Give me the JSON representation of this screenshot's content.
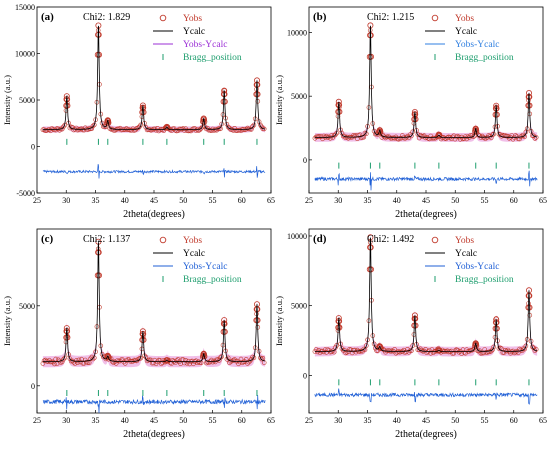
{
  "colors": {
    "yobs": "#c0392b",
    "ycalc": "#000000",
    "diff": "#1f5fd6",
    "bragg": "#1e9e6e",
    "diff_legend_b": "#2f7fe0",
    "diff_legend_c": "#1f5fd6",
    "diff_legend_d": "#1f5fd6",
    "diff_legend_a": "#9b2fd6",
    "fill": "#e58bd6"
  },
  "chart_data": [
    {
      "type": "scatter",
      "panel_label": "(a)",
      "chi_label": "Chi2: 1.829",
      "xlabel": "2theta(degrees)",
      "ylabel": "Intensity (a.u.)",
      "xlim": [
        25,
        65
      ],
      "ylim": [
        -5000,
        15000
      ],
      "xticks": [
        "25",
        "30",
        "35",
        "40",
        "45",
        "50",
        "55",
        "60",
        "65"
      ],
      "yticks": [
        "-5000",
        "0",
        "5000",
        "10000",
        "15000"
      ],
      "ytick_values": [
        -5000,
        0,
        5000,
        10000,
        15000
      ],
      "legend": [
        "Yobs",
        "Ycalc",
        "Yobs-Ycalc",
        "Bragg_position"
      ],
      "baseline": 1800,
      "peaks": [
        [
          30.1,
          3600
        ],
        [
          35.5,
          11200
        ],
        [
          37.1,
          900
        ],
        [
          43.1,
          2600
        ],
        [
          47.2,
          300
        ],
        [
          53.5,
          1200
        ],
        [
          57.0,
          4200
        ],
        [
          62.6,
          5300
        ]
      ],
      "bragg_y": 500,
      "bragg_positions": [
        30.1,
        35.5,
        37.1,
        43.1,
        47.2,
        53.5,
        57.0,
        62.6
      ],
      "diff_y": -2700
    },
    {
      "type": "scatter",
      "panel_label": "(b)",
      "chi_label": "Chi2: 1.215",
      "xlabel": "2theta(degrees)",
      "ylabel": "Intensity (a.u.)",
      "xlim": [
        25,
        65
      ],
      "ylim": [
        -2600,
        12000
      ],
      "xticks": [
        "25",
        "30",
        "35",
        "40",
        "45",
        "50",
        "55",
        "60",
        "65"
      ],
      "yticks": [
        "0",
        "5000",
        "10000"
      ],
      "ytick_values": [
        0,
        5000,
        10000
      ],
      "legend": [
        "Yobs",
        "Ycalc",
        "Yobs-Ycalc",
        "Bragg_position"
      ],
      "baseline": 1750,
      "peaks": [
        [
          30.1,
          2800
        ],
        [
          35.5,
          8800
        ],
        [
          37.1,
          500
        ],
        [
          43.1,
          2000
        ],
        [
          47.2,
          200
        ],
        [
          53.5,
          700
        ],
        [
          57.0,
          2500
        ],
        [
          62.6,
          3500
        ]
      ],
      "bragg_y": -450,
      "bragg_positions": [
        30.1,
        35.5,
        37.1,
        43.1,
        47.2,
        53.5,
        57.0,
        62.6
      ],
      "diff_y": -1500
    },
    {
      "type": "scatter",
      "panel_label": "(c)",
      "chi_label": "Chi2: 1.137",
      "xlabel": "2theta(degrees)",
      "ylabel": "Intensity (a.u.)",
      "xlim": [
        25,
        65
      ],
      "ylim": [
        -1700,
        9800
      ],
      "xticks": [
        "25",
        "30",
        "35",
        "40",
        "45",
        "50",
        "55",
        "60",
        "65"
      ],
      "yticks": [
        "0",
        "5000"
      ],
      "ytick_values": [
        0,
        5000
      ],
      "legend": [
        "Yobs",
        "Ycalc",
        "Yobs-Ycalc",
        "Bragg_position"
      ],
      "baseline": 1500,
      "peaks": [
        [
          30.1,
          2100
        ],
        [
          35.5,
          7500
        ],
        [
          37.1,
          300
        ],
        [
          43.1,
          1900
        ],
        [
          47.2,
          100
        ],
        [
          53.5,
          500
        ],
        [
          57.0,
          2600
        ],
        [
          62.6,
          3600
        ]
      ],
      "bragg_y": -450,
      "bragg_positions": [
        30.1,
        35.5,
        37.1,
        43.1,
        47.2,
        53.5,
        57.0,
        62.6
      ],
      "diff_y": -1000
    },
    {
      "type": "scatter",
      "panel_label": "(d)",
      "chi_label": "Chi2: 1.492",
      "xlabel": "2theta(degrees)",
      "ylabel": "Intensity (a.u.)",
      "xlim": [
        25,
        65
      ],
      "ylim": [
        -2700,
        10500
      ],
      "xticks": [
        "25",
        "30",
        "35",
        "40",
        "45",
        "50",
        "55",
        "60",
        "65"
      ],
      "yticks": [
        "0",
        "5000",
        "10000"
      ],
      "ytick_values": [
        0,
        5000,
        10000
      ],
      "legend": [
        "Yobs",
        "Ycalc",
        "Yobs-Ycalc",
        "Bragg_position"
      ],
      "baseline": 1700,
      "peaks": [
        [
          30.1,
          2400
        ],
        [
          35.5,
          8200
        ],
        [
          37.1,
          300
        ],
        [
          43.1,
          2600
        ],
        [
          47.2,
          100
        ],
        [
          53.5,
          600
        ],
        [
          57.0,
          2300
        ],
        [
          62.6,
          4400
        ]
      ],
      "bragg_y": -500,
      "bragg_positions": [
        30.1,
        35.5,
        37.1,
        43.1,
        47.2,
        53.5,
        57.0,
        62.6
      ],
      "diff_y": -1400
    }
  ]
}
